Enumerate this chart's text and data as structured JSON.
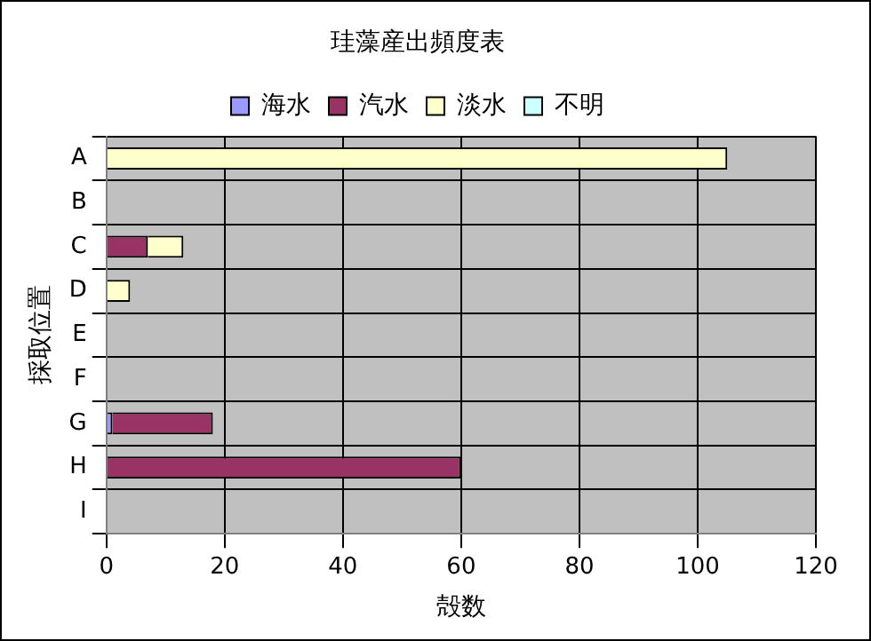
{
  "chart_data": {
    "type": "bar",
    "orientation": "horizontal",
    "stacked": true,
    "title": "珪藻産出頻度表",
    "xlabel": "殻数",
    "ylabel": "採取位置",
    "categories": [
      "A",
      "B",
      "C",
      "D",
      "E",
      "F",
      "G",
      "H",
      "I"
    ],
    "series": [
      {
        "name": "海水",
        "color": "#9999ff",
        "values": [
          0,
          0,
          0,
          0,
          0,
          0,
          1,
          0,
          0
        ]
      },
      {
        "name": "汽水",
        "color": "#993366",
        "values": [
          0,
          0,
          7,
          0,
          0,
          0,
          17,
          60,
          0
        ]
      },
      {
        "name": "淡水",
        "color": "#ffffcc",
        "values": [
          105,
          0,
          6,
          4,
          0,
          0,
          0,
          0,
          0
        ]
      },
      {
        "name": "不明",
        "color": "#ccffff",
        "values": [
          0,
          0,
          0,
          0,
          0,
          0,
          0,
          0,
          0
        ]
      }
    ],
    "xlim": [
      0,
      120
    ],
    "xticks": [
      0,
      20,
      40,
      60,
      80,
      100,
      120
    ],
    "grid": true,
    "legend": "top"
  }
}
